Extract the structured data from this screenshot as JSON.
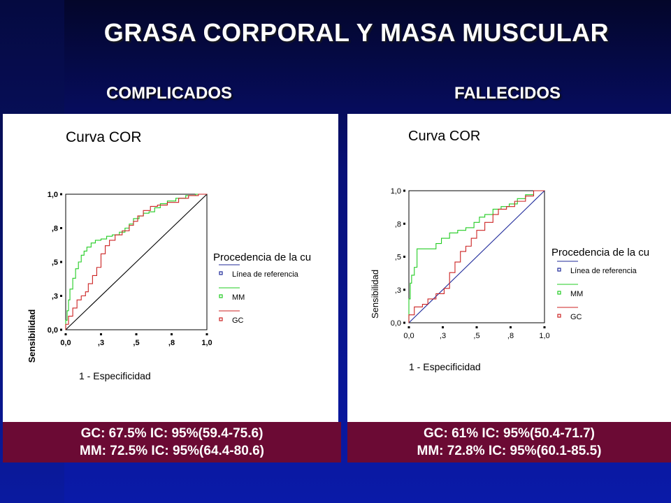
{
  "slide": {
    "title": "GRASA CORPORAL Y MASA MUSCULAR",
    "colors": {
      "background": "#07107a",
      "caption_bg": "#6b0a34",
      "ref_line": "#1f2a9a",
      "mm": "#22cc22",
      "gc": "#cc2222"
    }
  },
  "panels": [
    {
      "heading": "COMPLICADOS",
      "caption_line1": "GC: 67.5%   IC: 95%(59.4-75.6)",
      "caption_line2": "MM: 72.5%   IC: 95%(64.4-80.6)"
    },
    {
      "heading": "FALLECIDOS",
      "caption_line1": "GC: 61%   IC: 95%(50.4-71.7)",
      "caption_line2": "MM: 72.8%   IC: 95%(60.1-85.5)"
    }
  ],
  "chart_data": [
    {
      "type": "line",
      "title": "Curva COR",
      "xlabel": "1 - Especificidad",
      "ylabel": "Sensibilidad",
      "xlim": [
        0,
        1
      ],
      "ylim": [
        0,
        1
      ],
      "xticks": [
        "0,0",
        ",3",
        ",5",
        ",8",
        "1,0"
      ],
      "yticks": [
        "0,0",
        ",3",
        ",5",
        ",8",
        "1,0"
      ],
      "legend_title": "Procedencia de la cu",
      "legend_position": "right",
      "series": [
        {
          "name": "Línea de referencia",
          "color": "#1f2a9a",
          "x": [
            0,
            1
          ],
          "y": [
            0,
            1
          ]
        },
        {
          "name": "MM",
          "color": "#22cc22",
          "x": [
            0,
            0.01,
            0.02,
            0.03,
            0.05,
            0.07,
            0.09,
            0.11,
            0.13,
            0.15,
            0.18,
            0.21,
            0.25,
            0.29,
            0.33,
            0.38,
            0.42,
            0.45,
            0.48,
            0.52,
            0.55,
            0.59,
            0.63,
            0.67,
            0.72,
            0.78,
            0.85,
            0.92,
            1.0
          ],
          "y": [
            0,
            0.07,
            0.14,
            0.22,
            0.3,
            0.38,
            0.45,
            0.5,
            0.55,
            0.58,
            0.61,
            0.64,
            0.66,
            0.67,
            0.69,
            0.7,
            0.72,
            0.75,
            0.78,
            0.82,
            0.84,
            0.86,
            0.87,
            0.9,
            0.93,
            0.95,
            0.97,
            0.99,
            1.0
          ]
        },
        {
          "name": "GC",
          "color": "#cc2222",
          "x": [
            0,
            0.02,
            0.05,
            0.08,
            0.11,
            0.14,
            0.16,
            0.19,
            0.22,
            0.25,
            0.28,
            0.31,
            0.35,
            0.4,
            0.45,
            0.48,
            0.51,
            0.55,
            0.6,
            0.65,
            0.72,
            0.8,
            0.87,
            0.94,
            1.0
          ],
          "y": [
            0,
            0.04,
            0.1,
            0.16,
            0.22,
            0.25,
            0.28,
            0.34,
            0.4,
            0.46,
            0.56,
            0.62,
            0.66,
            0.7,
            0.73,
            0.77,
            0.8,
            0.84,
            0.88,
            0.91,
            0.92,
            0.94,
            0.97,
            0.99,
            1.0
          ]
        }
      ]
    },
    {
      "type": "line",
      "title": "Curva COR",
      "xlabel": "1 - Especificidad",
      "ylabel": "Sensibilidad",
      "xlim": [
        0,
        1
      ],
      "ylim": [
        0,
        1
      ],
      "xticks": [
        "0,0",
        ",3",
        ",5",
        ",8",
        "1,0"
      ],
      "yticks": [
        "0,0",
        ",3",
        ",5",
        ",8",
        "1,0"
      ],
      "legend_title": "Procedencia de la cu",
      "legend_position": "right",
      "series": [
        {
          "name": "Línea de referencia",
          "color": "#1f2a9a",
          "x": [
            0,
            1
          ],
          "y": [
            0,
            1
          ]
        },
        {
          "name": "MM",
          "color": "#22cc22",
          "x": [
            0,
            0.01,
            0.02,
            0.04,
            0.06,
            0.08,
            0.2,
            0.24,
            0.3,
            0.36,
            0.42,
            0.48,
            0.52,
            0.56,
            0.62,
            0.68,
            0.74,
            0.8,
            0.86,
            0.92,
            1.0
          ],
          "y": [
            0,
            0.18,
            0.3,
            0.36,
            0.42,
            0.56,
            0.56,
            0.6,
            0.64,
            0.68,
            0.7,
            0.72,
            0.76,
            0.8,
            0.82,
            0.86,
            0.88,
            0.9,
            0.94,
            0.97,
            1.0
          ]
        },
        {
          "name": "GC",
          "color": "#cc2222",
          "x": [
            0,
            0.04,
            0.1,
            0.14,
            0.2,
            0.26,
            0.3,
            0.34,
            0.38,
            0.42,
            0.46,
            0.5,
            0.56,
            0.62,
            0.66,
            0.72,
            0.78,
            0.86,
            0.92,
            1.0
          ],
          "y": [
            0,
            0.06,
            0.12,
            0.14,
            0.18,
            0.22,
            0.26,
            0.38,
            0.46,
            0.54,
            0.58,
            0.64,
            0.7,
            0.76,
            0.82,
            0.86,
            0.88,
            0.92,
            0.96,
            1.0
          ]
        }
      ]
    }
  ]
}
